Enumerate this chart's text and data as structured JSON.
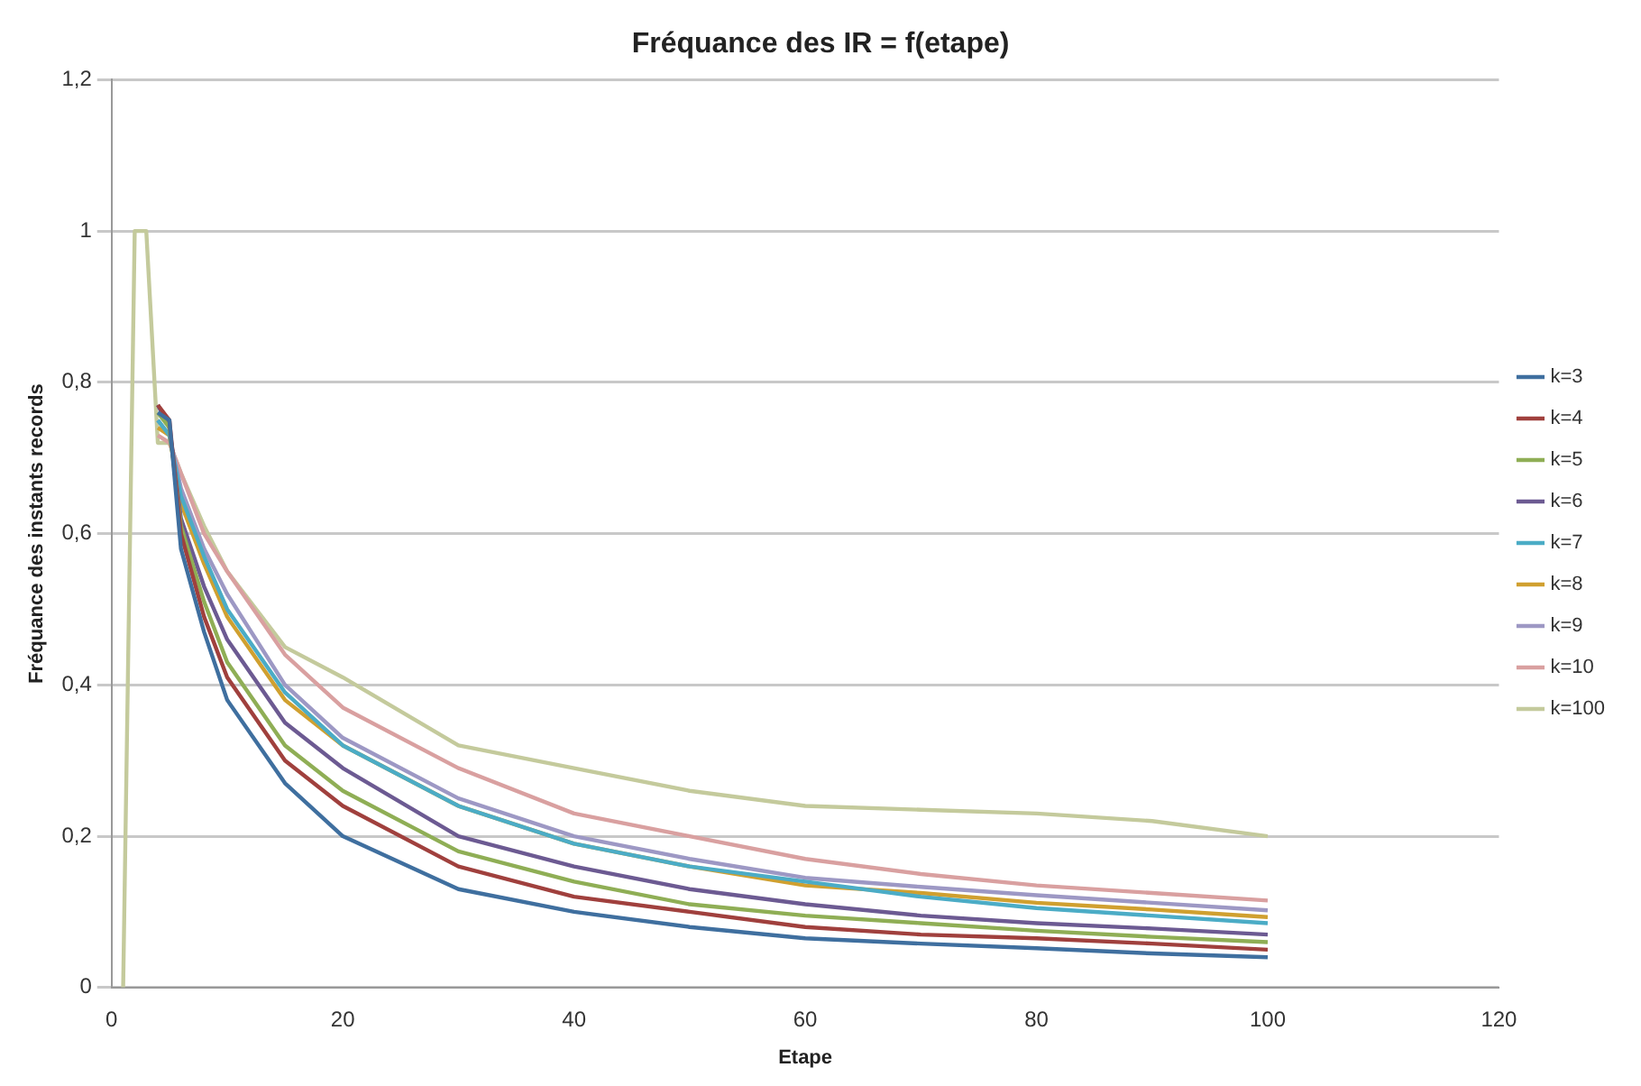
{
  "chart_data": {
    "type": "line",
    "title": "Fréquance des IR = f(etape)",
    "xlabel": "Etape",
    "ylabel": "Fréquance des instants records",
    "x": [
      1,
      2,
      3,
      4,
      5,
      6,
      8,
      10,
      15,
      20,
      30,
      40,
      50,
      60,
      70,
      80,
      90,
      100
    ],
    "xlim": [
      0,
      120
    ],
    "xticks": [
      0,
      20,
      40,
      60,
      80,
      100,
      120
    ],
    "ylim": [
      0,
      1.2
    ],
    "yticks": [
      0,
      {
        "value": 0.2,
        "label": "0,2"
      },
      {
        "value": 0.4,
        "label": "0,4"
      },
      {
        "value": 0.6,
        "label": "0,6"
      },
      {
        "value": 0.8,
        "label": "0,8"
      },
      1,
      {
        "value": 1.2,
        "label": "1,2"
      }
    ],
    "grid": "y",
    "legend": "right",
    "marker": "none",
    "line_style": "solid",
    "series": [
      {
        "name": "k=3",
        "color": "#3f6f9f",
        "values": [
          null,
          null,
          null,
          0.76,
          0.75,
          0.58,
          0.47,
          0.38,
          0.27,
          0.2,
          0.13,
          0.1,
          0.08,
          0.065,
          0.058,
          0.052,
          0.045,
          0.04
        ]
      },
      {
        "name": "k=4",
        "color": "#a0403d",
        "values": [
          null,
          null,
          null,
          0.77,
          0.75,
          0.6,
          0.49,
          0.41,
          0.3,
          0.24,
          0.16,
          0.12,
          0.1,
          0.08,
          0.07,
          0.065,
          0.058,
          0.05
        ]
      },
      {
        "name": "k=5",
        "color": "#8fae55",
        "values": [
          null,
          null,
          null,
          0.76,
          0.74,
          0.61,
          0.51,
          0.43,
          0.32,
          0.26,
          0.18,
          0.14,
          0.11,
          0.095,
          0.085,
          0.075,
          0.067,
          0.06
        ]
      },
      {
        "name": "k=6",
        "color": "#6c5a92",
        "values": [
          null,
          null,
          null,
          0.77,
          0.74,
          0.62,
          0.53,
          0.46,
          0.35,
          0.29,
          0.2,
          0.16,
          0.13,
          0.11,
          0.095,
          0.085,
          0.078,
          0.07
        ]
      },
      {
        "name": "k=7",
        "color": "#4bacc6",
        "values": [
          null,
          null,
          null,
          0.75,
          0.73,
          0.65,
          0.57,
          0.5,
          0.39,
          0.32,
          0.24,
          0.19,
          0.16,
          0.14,
          0.12,
          0.105,
          0.095,
          0.085
        ]
      },
      {
        "name": "k=8",
        "color": "#d0a030",
        "values": [
          null,
          null,
          null,
          0.74,
          0.73,
          0.64,
          0.56,
          0.49,
          0.38,
          0.32,
          0.24,
          0.19,
          0.16,
          0.135,
          0.125,
          0.112,
          0.103,
          0.093
        ]
      },
      {
        "name": "k=9",
        "color": "#9d98c4",
        "values": [
          null,
          null,
          null,
          0.75,
          0.73,
          0.66,
          0.58,
          0.52,
          0.4,
          0.33,
          0.25,
          0.2,
          0.17,
          0.145,
          0.133,
          0.122,
          0.112,
          0.102
        ]
      },
      {
        "name": "k=10",
        "color": "#d9a0a0",
        "values": [
          null,
          null,
          null,
          0.73,
          0.72,
          0.68,
          0.6,
          0.55,
          0.44,
          0.37,
          0.29,
          0.23,
          0.2,
          0.17,
          0.15,
          0.135,
          0.125,
          0.115
        ]
      },
      {
        "name": "k=100",
        "color": "#c4ca9c",
        "values": [
          0,
          1,
          1,
          0.72,
          0.72,
          0.68,
          0.61,
          0.55,
          0.45,
          0.41,
          0.32,
          0.29,
          0.26,
          0.24,
          0.235,
          0.23,
          0.22,
          0.2
        ]
      }
    ]
  }
}
